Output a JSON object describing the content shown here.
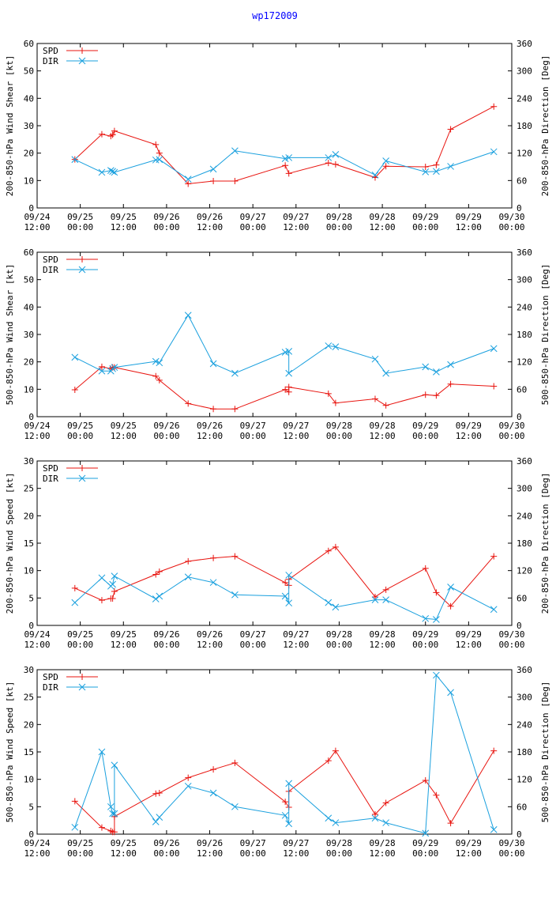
{
  "page": {
    "title": "wp172009"
  },
  "colors": {
    "spd": "#e8140f",
    "dir": "#1aa0de",
    "frame": "#000000",
    "title": "#0000ff"
  },
  "x_axis": {
    "range_hours": [
      0,
      132
    ],
    "tick_hours": [
      0,
      12,
      24,
      36,
      48,
      60,
      72,
      84,
      96,
      108,
      120,
      132
    ],
    "tick_labels": [
      [
        "09/24",
        "12:00"
      ],
      [
        "09/25",
        "00:00"
      ],
      [
        "09/25",
        "12:00"
      ],
      [
        "09/26",
        "00:00"
      ],
      [
        "09/26",
        "12:00"
      ],
      [
        "09/27",
        "00:00"
      ],
      [
        "09/27",
        "12:00"
      ],
      [
        "09/28",
        "00:00"
      ],
      [
        "09/28",
        "12:00"
      ],
      [
        "09/29",
        "00:00"
      ],
      [
        "09/29",
        "12:00"
      ],
      [
        "09/30",
        "00:00"
      ]
    ]
  },
  "chart_data": [
    {
      "type": "line",
      "ylabel": "200-850-hPa Wind Shear [kt]",
      "y2label": "200-850-hPa Direction [Deg]",
      "ylim": [
        0,
        60
      ],
      "yticks": [
        0,
        10,
        20,
        30,
        40,
        50,
        60
      ],
      "y2lim": [
        0,
        360
      ],
      "y2ticks": [
        0,
        60,
        120,
        180,
        240,
        300,
        360
      ],
      "legend": [
        "SPD",
        "DIR"
      ],
      "series": [
        {
          "name": "SPD",
          "axis": "left",
          "x": [
            10.5,
            18,
            20.5,
            21,
            21.5,
            33,
            34,
            42,
            49,
            55,
            69,
            70,
            81,
            83,
            94,
            97,
            108,
            111,
            115,
            127
          ],
          "y": [
            17.7,
            26.9,
            26.2,
            26.7,
            28.1,
            23.1,
            20.0,
            8.8,
            9.8,
            9.8,
            15.5,
            12.6,
            16.4,
            15.9,
            11.1,
            15.2,
            15.0,
            15.7,
            28.7,
            37.0
          ]
        },
        {
          "name": "DIR",
          "axis": "right",
          "x": [
            10.5,
            18,
            20.5,
            21,
            21.5,
            33,
            34,
            42,
            49,
            55,
            69,
            70,
            81,
            83,
            94,
            97,
            108,
            111,
            115,
            127
          ],
          "y": [
            106,
            78,
            82,
            80,
            78,
            105,
            106,
            63,
            85,
            125,
            108,
            110,
            110,
            117,
            72,
            103,
            79,
            80,
            91,
            123
          ]
        }
      ]
    },
    {
      "type": "line",
      "ylabel": "500-850-hPa Wind Shear [kt]",
      "y2label": "500-850-hPa Direction [Deg]",
      "ylim": [
        0,
        60
      ],
      "yticks": [
        0,
        10,
        20,
        30,
        40,
        50,
        60
      ],
      "y2lim": [
        0,
        360
      ],
      "y2ticks": [
        0,
        60,
        120,
        180,
        240,
        300,
        360
      ],
      "legend": [
        "SPD",
        "DIR"
      ],
      "series": [
        {
          "name": "SPD",
          "axis": "left",
          "x": [
            10.5,
            18,
            20.5,
            21,
            21.5,
            33,
            34,
            42,
            49,
            55,
            69,
            70,
            70,
            81,
            83,
            94,
            97,
            108,
            111,
            115,
            127
          ],
          "y": [
            9.8,
            18.2,
            17.5,
            18.0,
            18.0,
            14.8,
            13.3,
            4.8,
            2.8,
            2.8,
            9.9,
            9.0,
            10.8,
            8.4,
            5.0,
            6.5,
            4.1,
            8.0,
            7.7,
            11.9,
            11.1
          ]
        },
        {
          "name": "DIR",
          "axis": "right",
          "x": [
            10.5,
            18,
            20.5,
            21,
            21.5,
            33,
            34,
            42,
            49,
            55,
            69,
            70,
            70,
            81,
            83,
            94,
            97,
            108,
            111,
            115,
            127
          ],
          "y": [
            130,
            100,
            100,
            105,
            108,
            121,
            118,
            222,
            116,
            95,
            141,
            143,
            95,
            155,
            153,
            126,
            95,
            109,
            98,
            114,
            149
          ]
        }
      ]
    },
    {
      "type": "line",
      "ylabel": "200-850-hPa Wind Speed [kt]",
      "y2label": "200-850-hPa Direction [Deg]",
      "ylim": [
        0,
        30
      ],
      "yticks": [
        0,
        5,
        10,
        15,
        20,
        25,
        30
      ],
      "y2lim": [
        0,
        360
      ],
      "y2ticks": [
        0,
        60,
        120,
        180,
        240,
        300,
        360
      ],
      "legend": [
        "SPD",
        "DIR"
      ],
      "series": [
        {
          "name": "SPD",
          "axis": "left",
          "x": [
            10.5,
            18,
            20.5,
            21,
            21.5,
            33,
            34,
            42,
            49,
            55,
            69,
            70,
            70,
            81,
            83,
            94,
            97,
            108,
            111,
            115,
            127
          ],
          "y": [
            6.8,
            4.6,
            4.9,
            4.9,
            6.2,
            9.3,
            9.8,
            11.7,
            12.3,
            12.6,
            7.8,
            7.3,
            8.4,
            13.6,
            14.3,
            5.2,
            6.5,
            10.4,
            6.0,
            3.5,
            12.6
          ]
        },
        {
          "name": "DIR",
          "axis": "right",
          "x": [
            10.5,
            18,
            20.5,
            21,
            21.5,
            33,
            34,
            42,
            49,
            55,
            69,
            70,
            70,
            81,
            83,
            94,
            97,
            108,
            111,
            115,
            127
          ],
          "y": [
            50,
            104,
            86,
            90,
            108,
            58,
            64,
            106,
            94,
            67,
            64,
            49,
            110,
            50,
            40,
            56,
            56,
            15,
            13,
            84,
            35
          ]
        }
      ]
    },
    {
      "type": "line",
      "ylabel": "500-850-hPa Wind Speed [kt]",
      "y2label": "500-850-hPa Direction [Deg]",
      "ylim": [
        0,
        30
      ],
      "yticks": [
        0,
        5,
        10,
        15,
        20,
        25,
        30
      ],
      "y2lim": [
        0,
        360
      ],
      "y2ticks": [
        0,
        60,
        120,
        180,
        240,
        300,
        360
      ],
      "legend": [
        "SPD",
        "DIR"
      ],
      "series": [
        {
          "name": "SPD",
          "axis": "left",
          "x": [
            10.5,
            18,
            20.5,
            21,
            21.5,
            21.5,
            33,
            34,
            42,
            49,
            55,
            69,
            70,
            70,
            81,
            83,
            94,
            97,
            108,
            111,
            115,
            127
          ],
          "y": [
            6.0,
            1.2,
            0.6,
            0.4,
            0.4,
            3.2,
            7.4,
            7.5,
            10.3,
            11.8,
            13.0,
            5.9,
            4.9,
            7.8,
            13.4,
            15.2,
            3.6,
            5.7,
            9.8,
            7.1,
            2.0,
            15.2
          ]
        },
        {
          "name": "DIR",
          "axis": "right",
          "x": [
            10.5,
            18,
            20.5,
            21,
            21.5,
            21.5,
            33,
            34,
            42,
            49,
            55,
            69,
            70,
            70,
            81,
            83,
            94,
            97,
            108,
            111,
            115,
            127
          ],
          "y": [
            15,
            180,
            60,
            45,
            45,
            151,
            27,
            37,
            105,
            90,
            60,
            41,
            23,
            111,
            35,
            25,
            35,
            25,
            2,
            348,
            310,
            10
          ]
        }
      ]
    }
  ]
}
